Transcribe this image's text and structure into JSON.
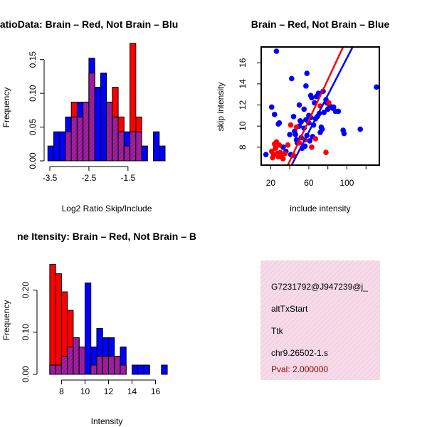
{
  "colors": {
    "red": "#ff0000",
    "blue": "#0000ff",
    "purple": "#a020a0",
    "info_bg": "#f6dbe9",
    "pval": "#8b0000"
  },
  "chart_data": [
    {
      "type": "bar",
      "title": "RatioData: Brain – Red, Not Brain – Blu",
      "xlabel": "Log2 Ratio Skip/Include",
      "ylabel": "Frequency",
      "xlim": [
        -3.5,
        -0.55
      ],
      "ylim": [
        0,
        0.175
      ],
      "xticks": [
        -3.5,
        -2.5,
        -1.5
      ],
      "xtick_labels": [
        "-3.5",
        "-2.5",
        "-1.5"
      ],
      "yticks": [
        0,
        0.05,
        0.1,
        0.15
      ],
      "ytick_labels": [
        "0.00",
        "0.05",
        "0.10",
        "0.15"
      ],
      "bin_start": -3.55,
      "bin_width": 0.15,
      "series": [
        {
          "name": "Not Brain",
          "color": "blue",
          "values": [
            0.022,
            0.043,
            0.043,
            0.065,
            0.065,
            0.087,
            0.087,
            0.152,
            0.109,
            0.13,
            0.087,
            0.065,
            0.043,
            0.043,
            0.043,
            0.043,
            0.022,
            0,
            0.043,
            0.022
          ]
        },
        {
          "name": "Brain",
          "color": "red",
          "values": [
            0,
            0,
            0,
            0.043,
            0.087,
            0.065,
            0.087,
            0.13,
            0,
            0,
            0.087,
            0.109,
            0.065,
            0.022,
            0.174,
            0.065,
            0,
            0,
            0,
            0
          ]
        }
      ]
    },
    {
      "type": "scatter",
      "title": "Brain – Red, Not Brain – Blue",
      "xlabel": "include intensity",
      "ylabel": "skip intensity",
      "xlim": [
        10,
        134
      ],
      "ylim": [
        6.3,
        17.5
      ],
      "xticks": [
        20,
        60,
        100
      ],
      "xtick_labels": [
        "20",
        "60",
        "100"
      ],
      "yticks": [
        8,
        10,
        12,
        14,
        16
      ],
      "ytick_labels": [
        "8",
        "10",
        "12",
        "14",
        "16"
      ],
      "series": [
        {
          "name": "Not Brain",
          "color": "blue",
          "x": [
            26,
            15,
            21,
            24,
            28,
            42,
            58,
            40,
            45,
            50,
            52,
            55,
            57,
            60,
            62,
            64,
            66,
            68,
            70,
            72,
            74,
            76,
            78,
            80,
            62,
            75,
            96,
            97,
            114,
            131,
            48,
            52,
            56,
            61,
            65,
            69,
            82,
            88,
            50,
            55,
            60,
            44,
            36,
            29,
            33,
            47,
            53,
            58,
            71,
            73,
            79,
            86,
            91,
            63,
            57,
            51,
            46,
            41,
            67,
            85
          ],
          "y": [
            17.1,
            7.3,
            11.8,
            11.1,
            10.2,
            14.5,
            15.0,
            9.2,
            9.5,
            10.0,
            10.4,
            9.8,
            10.6,
            11.0,
            10.8,
            9.0,
            12.2,
            12.8,
            13.1,
            9.4,
            9.7,
            11.3,
            12.5,
            11.6,
            12.9,
            13.3,
            9.6,
            9.3,
            9.7,
            13.7,
            8.4,
            8.9,
            8.1,
            8.6,
            10.1,
            10.9,
            11.9,
            11.4,
            12.0,
            11.6,
            10.3,
            10.9,
            7.6,
            10.3,
            8.0,
            8.7,
            7.9,
            9.1,
            11.2,
            9.9,
            12.2,
            11.8,
            11.4,
            12.7,
            13.8,
            10.5,
            9.2,
            7.3,
            10.7,
            11.7
          ]
        },
        {
          "name": "Brain",
          "color": "red",
          "x": [
            21,
            23,
            25,
            27,
            29,
            31,
            33,
            35,
            22,
            24,
            26,
            28,
            30,
            38,
            41,
            47,
            50,
            56,
            63,
            67,
            78,
            81,
            72,
            44
          ],
          "y": [
            7.6,
            7.3,
            7.9,
            7.4,
            8.2,
            7.1,
            6.9,
            7.4,
            7.0,
            8.3,
            8.5,
            7.1,
            7.5,
            8.2,
            10.1,
            9.9,
            8.4,
            8.7,
            8.0,
            8.8,
            7.5,
            12.2,
            11.9,
            7.2
          ]
        }
      ],
      "fit_lines": [
        {
          "name": "Brain fit",
          "color": "red",
          "from": [
            38,
            6.3
          ],
          "to": [
            96,
            17.5
          ]
        },
        {
          "name": "Not Brain fit",
          "color": "blue",
          "from": [
            42,
            6.3
          ],
          "to": [
            106,
            17.5
          ]
        }
      ]
    },
    {
      "type": "bar",
      "title": "ne Itensity: Brain – Red, Not Brain – B",
      "xlabel": "Intensity",
      "ylabel": "Frequency",
      "xlim": [
        6.4,
        17.3
      ],
      "ylim": [
        0,
        0.262
      ],
      "xticks": [
        8,
        10,
        12,
        14,
        16
      ],
      "xtick_labels": [
        "8",
        "10",
        "12",
        "14",
        "16"
      ],
      "yticks": [
        0,
        0.1,
        0.2
      ],
      "ytick_labels": [
        "0.00",
        "0.10",
        "0.20"
      ],
      "bin_start": 7.0,
      "bin_width": 0.5,
      "series": [
        {
          "name": "Not Brain",
          "color": "blue",
          "values": [
            0.022,
            0.022,
            0.043,
            0.065,
            0.087,
            0.065,
            0.217,
            0.065,
            0.109,
            0.087,
            0.087,
            0.043,
            0.065,
            0,
            0.022,
            0.022,
            0.022,
            0,
            0,
            0.022
          ]
        },
        {
          "name": "Brain",
          "color": "red",
          "values": [
            0.261,
            0.239,
            0.196,
            0.152,
            0.087,
            0.065,
            0,
            0.022,
            0.043,
            0.043,
            0.043,
            0.043,
            0.022,
            0,
            0,
            0,
            0,
            0,
            0,
            0
          ]
        }
      ]
    }
  ],
  "info_box": {
    "lines": [
      "G7231792@J947239@j_",
      "altTxStart",
      "Ttk",
      "chr9.26502-1.s"
    ],
    "pval": "Pval: 2.000000"
  }
}
